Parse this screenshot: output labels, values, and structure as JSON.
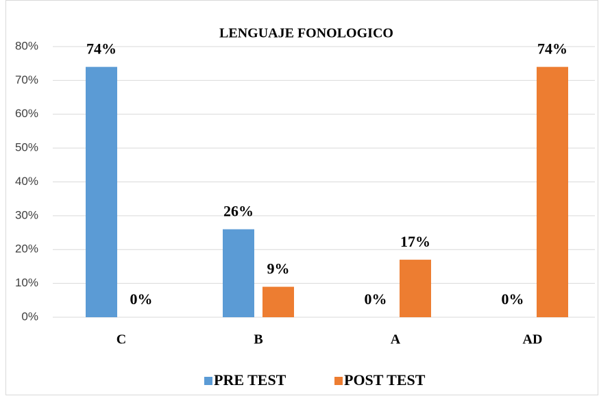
{
  "chart_data": {
    "type": "bar",
    "title": "LENGUAJE FONOLOGICO",
    "categories": [
      "C",
      "B",
      "A",
      "AD"
    ],
    "series": [
      {
        "name": "PRE TEST",
        "color": "#5b9bd5",
        "values": [
          74,
          26,
          0,
          0
        ],
        "value_labels": [
          "74%",
          "26%",
          "0%",
          "0%"
        ]
      },
      {
        "name": "POST TEST",
        "color": "#ed7d31",
        "values": [
          0,
          9,
          17,
          74
        ],
        "value_labels": [
          "0%",
          "9%",
          "17%",
          "74%"
        ]
      }
    ],
    "ylim": [
      0,
      80
    ],
    "yticks": [
      {
        "value": 0,
        "label": "0%"
      },
      {
        "value": 10,
        "label": "10%"
      },
      {
        "value": 20,
        "label": "20%"
      },
      {
        "value": 30,
        "label": "30%"
      },
      {
        "value": 40,
        "label": "40%"
      },
      {
        "value": 50,
        "label": "50%"
      },
      {
        "value": 60,
        "label": "60%"
      },
      {
        "value": 70,
        "label": "70%"
      },
      {
        "value": 80,
        "label": "80%"
      }
    ],
    "grid": true,
    "legend": "bottom"
  }
}
